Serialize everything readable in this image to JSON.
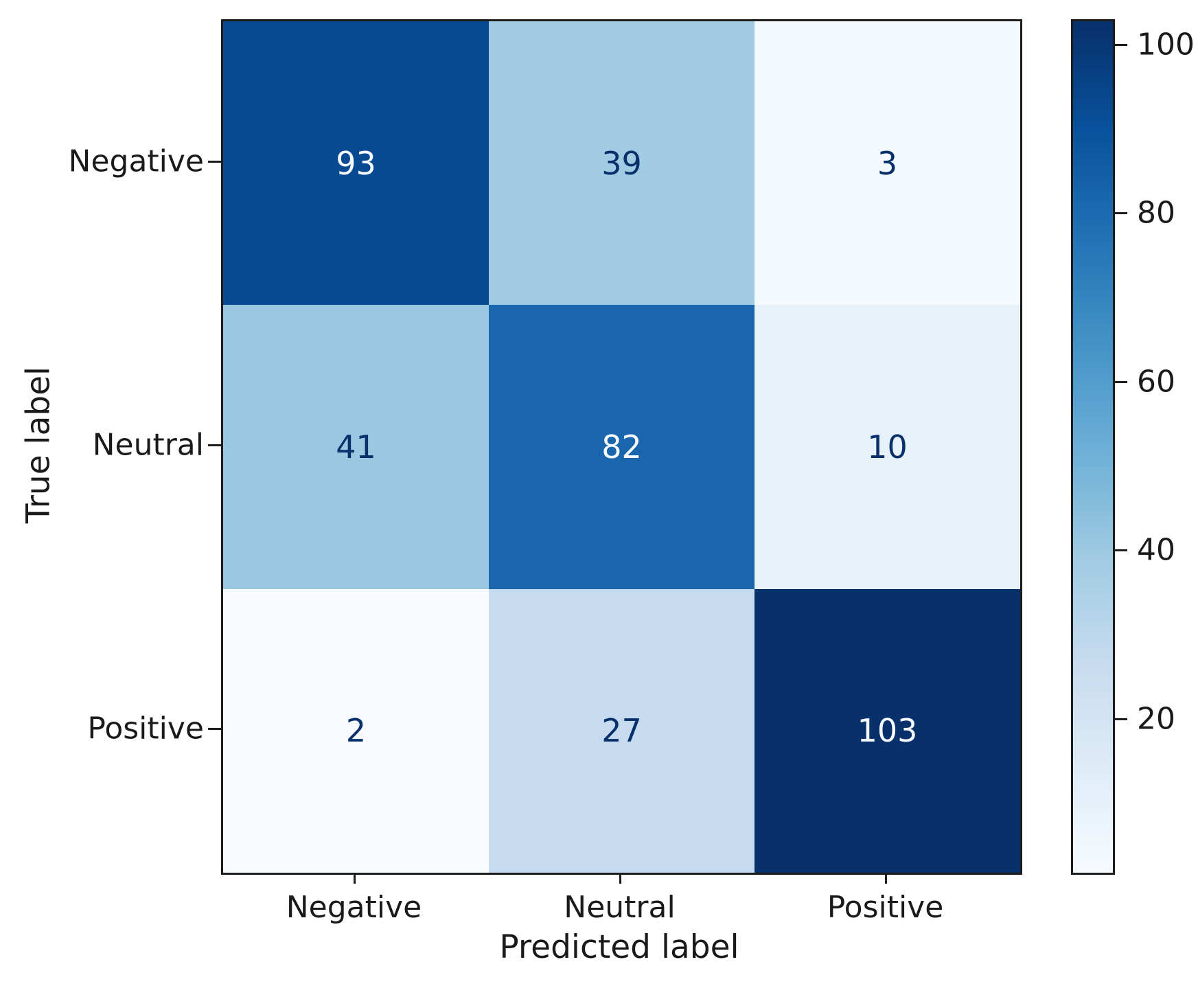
{
  "chart_data": {
    "type": "heatmap",
    "subtype": "confusion-matrix",
    "xlabel": "Predicted label",
    "ylabel": "True label",
    "x_categories": [
      "Negative",
      "Neutral",
      "Positive"
    ],
    "y_categories": [
      "Negative",
      "Neutral",
      "Positive"
    ],
    "matrix": [
      [
        93,
        39,
        3
      ],
      [
        41,
        82,
        10
      ],
      [
        2,
        27,
        103
      ]
    ],
    "vmin": 2,
    "vmax": 103,
    "colorbar_ticks": [
      20,
      40,
      60,
      80,
      100
    ],
    "legend_position": "right-colorbar",
    "grid": false,
    "colormap_name": "Blues",
    "colormap_stops": [
      {
        "t": 0.0,
        "color": "#f7fbff"
      },
      {
        "t": 0.125,
        "color": "#deebf7"
      },
      {
        "t": 0.25,
        "color": "#c6dbef"
      },
      {
        "t": 0.375,
        "color": "#9ecae1"
      },
      {
        "t": 0.5,
        "color": "#6baed6"
      },
      {
        "t": 0.625,
        "color": "#4292c6"
      },
      {
        "t": 0.75,
        "color": "#2171b5"
      },
      {
        "t": 0.875,
        "color": "#08519c"
      },
      {
        "t": 1.0,
        "color": "#08306b"
      }
    ],
    "cell_text_color_dark": "#08306b",
    "cell_text_color_light": "#f7fbff",
    "axis_text_color": "#1a1a1a",
    "spine_color": "#1c1c1c"
  }
}
